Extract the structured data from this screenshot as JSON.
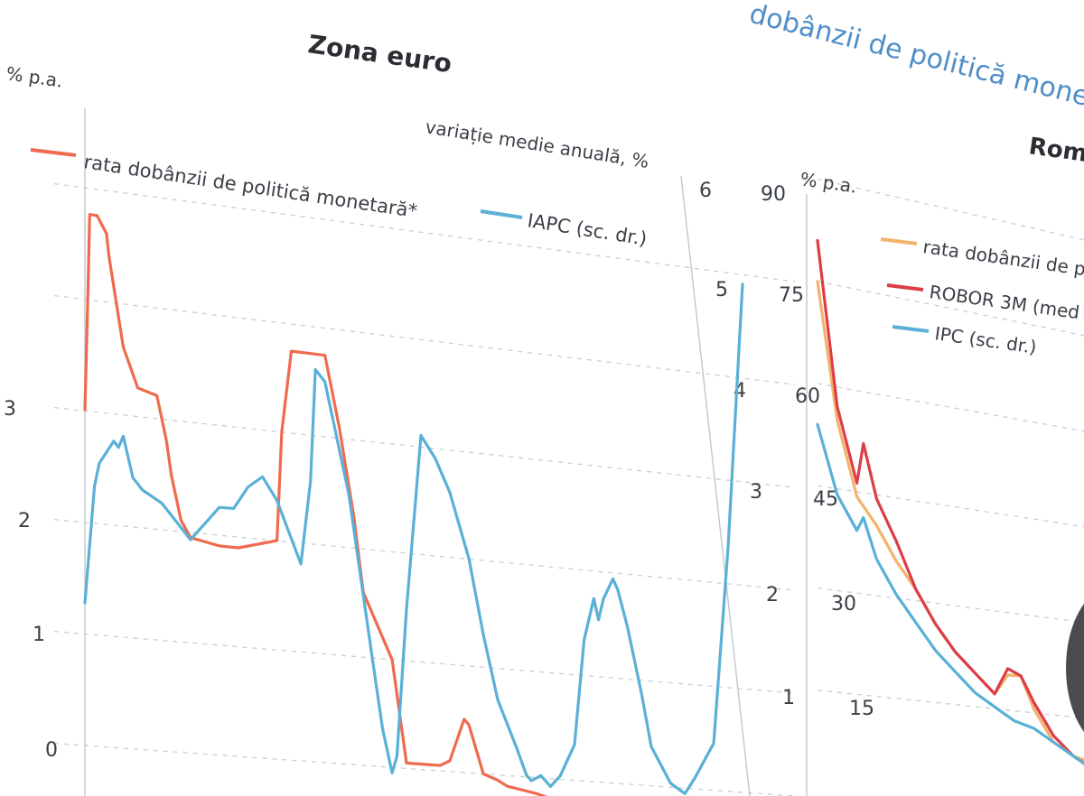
{
  "header_fragment": "dobânzii de politică monetară",
  "chart_data": [
    {
      "type": "line",
      "title": "Zona euro",
      "ylabel_left": "% p.a.",
      "ylabel_right": "variație medie anuală, %",
      "left_ticks": [
        "0",
        "1",
        "2",
        "3"
      ],
      "right_ticks": [
        "1",
        "2",
        "3",
        "4",
        "5",
        "6"
      ],
      "ylim_left": [
        0,
        4.5
      ],
      "ylim_right": [
        0,
        6
      ],
      "series": [
        {
          "name": "rata dobânzii de politică monetară*",
          "color": "#ef6a4f",
          "axis": "left",
          "x": [
            0,
            0.6,
            1,
            2.5,
            4.5,
            5,
            8,
            11,
            15,
            17,
            18,
            20,
            22,
            28,
            32,
            40,
            41,
            43,
            47,
            50,
            53,
            56,
            58,
            64,
            67,
            71,
            74,
            76,
            79,
            80,
            83,
            86,
            88,
            94,
            98,
            103
          ],
          "values": [
            3.0,
            4.0,
            4.75,
            4.75,
            4.6,
            4.4,
            3.6,
            3.25,
            3.2,
            2.8,
            2.5,
            2.1,
            1.95,
            1.9,
            1.9,
            2.0,
            3.0,
            3.75,
            3.75,
            3.75,
            3.1,
            2.3,
            1.6,
            1.0,
            0.05,
            0.05,
            0.05,
            0.1,
            0.5,
            0.45,
            0.0,
            -0.05,
            -0.1,
            -0.15,
            -0.2,
            -0.3
          ]
        },
        {
          "name": "IAPC (sc. dr.)",
          "color": "#5ab0d6",
          "axis": "right",
          "x": [
            0,
            2,
            3,
            6,
            7,
            8,
            10,
            12,
            16,
            22,
            26,
            28,
            31,
            34,
            37,
            40,
            45,
            47,
            48,
            50,
            55,
            57,
            60,
            62,
            64,
            65,
            67,
            70,
            73,
            76,
            80,
            83,
            86,
            90,
            92,
            93,
            95,
            97,
            99,
            102,
            104,
            106,
            107,
            108,
            110,
            111,
            113,
            116,
            118,
            122,
            125,
            127,
            131,
            134,
            137
          ],
          "values": [
            1.6,
            2.6,
            2.8,
            3.0,
            2.95,
            3.05,
            2.7,
            2.6,
            2.5,
            2.2,
            2.4,
            2.5,
            2.5,
            2.7,
            2.8,
            2.6,
            2.05,
            2.8,
            3.8,
            3.7,
            2.7,
            2.1,
            1.2,
            0.6,
            0.2,
            0.35,
            1.7,
            3.3,
            3.1,
            2.8,
            2.2,
            1.5,
            0.9,
            0.45,
            0.2,
            0.15,
            0.2,
            0.1,
            0.2,
            0.5,
            1.5,
            1.9,
            1.7,
            1.9,
            2.1,
            2.0,
            1.65,
            1.0,
            0.5,
            0.15,
            0.05,
            0.2,
            0.55,
            2.5,
            5.1
          ]
        }
      ]
    },
    {
      "type": "line",
      "title": "Romă",
      "ylabel_left": "% p.a.",
      "left_ticks": [
        "15",
        "30",
        "45",
        "60",
        "75",
        "90"
      ],
      "ylim_left": [
        0,
        90
      ],
      "series": [
        {
          "name": "rata dobânzii de p",
          "color": "#f2b36a",
          "x": [
            0,
            3,
            6,
            9,
            12,
            15,
            18,
            21,
            24,
            27,
            29,
            31,
            33,
            36,
            39,
            42
          ],
          "values": [
            75,
            55,
            44,
            40,
            35,
            31,
            26,
            22,
            19,
            16,
            19,
            19,
            14,
            9,
            7,
            6
          ]
        },
        {
          "name": "ROBOR 3M (med",
          "color": "#dd3d47",
          "x": [
            0,
            3,
            6,
            7,
            9,
            12,
            15,
            18,
            21,
            24,
            27,
            29,
            31,
            33,
            36,
            39,
            42
          ],
          "values": [
            81,
            57,
            46,
            52,
            44,
            38,
            31,
            26,
            22,
            19,
            16,
            20,
            19,
            15,
            10,
            7,
            5
          ]
        },
        {
          "name": "IPC (sc. dr.)",
          "color": "#5ab0d6",
          "x": [
            0,
            3,
            6,
            7,
            9,
            12,
            15,
            18,
            21,
            24,
            27,
            30,
            33,
            36,
            39,
            42
          ],
          "values": [
            54,
            44,
            39,
            41,
            35,
            30,
            26,
            22,
            19,
            16,
            14,
            12,
            11,
            9,
            7,
            5
          ]
        }
      ]
    }
  ]
}
